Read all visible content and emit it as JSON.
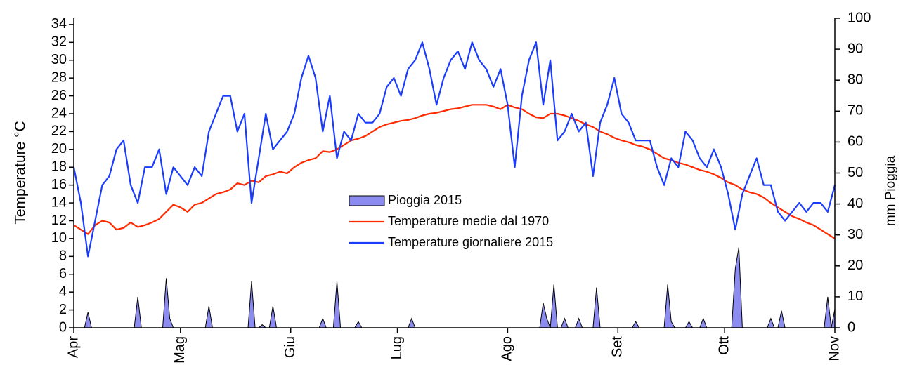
{
  "chart_data": {
    "type": "line",
    "y_label": "Temperature °C",
    "y2_label": "mm Pioggia",
    "legend": "center",
    "xlim": [
      0,
      214
    ],
    "xticks": [
      {
        "value": 0,
        "label": "Apr"
      },
      {
        "value": 30,
        "label": "Mag"
      },
      {
        "value": 61,
        "label": "Giu"
      },
      {
        "value": 91,
        "label": "Lug"
      },
      {
        "value": 122,
        "label": "Ago"
      },
      {
        "value": 153,
        "label": "Set"
      },
      {
        "value": 183,
        "label": "Ott"
      },
      {
        "value": 214,
        "label": "Nov"
      }
    ],
    "ylim": [
      0,
      34.7
    ],
    "yticks": [
      0,
      2,
      4,
      6,
      8,
      10,
      12,
      14,
      16,
      18,
      20,
      22,
      24,
      26,
      28,
      30,
      32,
      34
    ],
    "y2lim": [
      0,
      100
    ],
    "y2ticks": [
      0,
      10,
      20,
      30,
      40,
      50,
      60,
      70,
      80,
      90,
      100
    ],
    "x": [
      0,
      2,
      4,
      6,
      8,
      10,
      12,
      14,
      16,
      18,
      20,
      22,
      24,
      26,
      28,
      30,
      32,
      34,
      36,
      38,
      40,
      42,
      44,
      46,
      48,
      50,
      52,
      54,
      56,
      58,
      60,
      62,
      64,
      66,
      68,
      70,
      72,
      74,
      76,
      78,
      80,
      82,
      84,
      86,
      88,
      90,
      92,
      94,
      96,
      98,
      100,
      102,
      104,
      106,
      108,
      110,
      112,
      114,
      116,
      118,
      120,
      122,
      124,
      126,
      128,
      130,
      132,
      134,
      136,
      138,
      140,
      142,
      144,
      146,
      148,
      150,
      152,
      154,
      156,
      158,
      160,
      162,
      164,
      166,
      168,
      170,
      172,
      174,
      176,
      178,
      180,
      182,
      184,
      186,
      188,
      190,
      192,
      194,
      196,
      198,
      200,
      202,
      204,
      206,
      208,
      210,
      212,
      214
    ],
    "series": [
      {
        "name": "Pioggia 2015",
        "color": "#8c8cf0",
        "axis": "y2",
        "kind": "area",
        "x": [
          0,
          3,
          4,
          5,
          17,
          18,
          19,
          25,
          26,
          27,
          28,
          37,
          38,
          39,
          49,
          50,
          51,
          52,
          53,
          54,
          55,
          56,
          57,
          69,
          70,
          71,
          73,
          74,
          75,
          79,
          80,
          81,
          94,
          95,
          96,
          131,
          132,
          133,
          134,
          135,
          136,
          137,
          138,
          139,
          141,
          142,
          143,
          146,
          147,
          148,
          157,
          158,
          159,
          166,
          167,
          168,
          169,
          172,
          173,
          174,
          176,
          177,
          178,
          185,
          186,
          187,
          188,
          195,
          196,
          197,
          198,
          199,
          200,
          211,
          212,
          213,
          214
        ],
        "values": [
          0,
          0,
          5,
          0,
          0,
          10,
          0,
          0,
          16,
          3,
          0,
          0,
          7,
          0,
          0,
          15,
          0,
          0,
          1,
          0,
          0,
          7,
          0,
          0,
          3,
          0,
          0,
          15,
          0,
          0,
          2,
          0,
          0,
          3,
          0,
          0,
          8,
          3,
          0,
          14,
          0,
          0,
          3,
          0,
          0,
          3,
          0,
          0,
          13,
          0,
          0,
          2,
          0,
          0,
          14,
          2,
          0,
          0,
          2,
          0,
          0,
          3,
          0,
          0,
          19,
          26,
          0,
          0,
          3,
          0,
          0,
          5.5,
          0,
          0,
          10,
          0,
          6
        ]
      },
      {
        "name": "Temperature medie dal 1970",
        "color": "#ff2a00",
        "values": [
          11.5,
          11,
          10.5,
          11.5,
          12,
          11.8,
          11,
          11.2,
          11.8,
          11.3,
          11.5,
          11.8,
          12.2,
          13,
          13.8,
          13.5,
          13,
          13.8,
          14,
          14.5,
          15,
          15.2,
          15.5,
          16.2,
          16,
          16.5,
          16.3,
          17,
          17.2,
          17.5,
          17.3,
          18,
          18.5,
          18.8,
          19,
          19.8,
          19.7,
          20,
          20.5,
          21,
          21.2,
          21.5,
          22,
          22.5,
          22.8,
          23,
          23.2,
          23.3,
          23.5,
          23.8,
          24,
          24.1,
          24.3,
          24.5,
          24.6,
          24.8,
          25,
          25,
          25,
          24.8,
          24.5,
          25,
          24.7,
          24.5,
          24,
          23.6,
          23.5,
          24,
          24,
          23.8,
          23.5,
          23.2,
          22.8,
          22.5,
          22,
          21.7,
          21.3,
          21,
          20.8,
          20.5,
          20.3,
          20,
          19.5,
          19,
          18.8,
          18.5,
          18.3,
          18,
          17.7,
          17.5,
          17.2,
          16.8,
          16.3,
          16,
          15.5,
          15.2,
          15,
          14.6,
          14,
          13.5,
          13,
          12.5,
          12.2,
          11.8,
          11.5,
          11,
          10.5,
          10
        ]
      },
      {
        "name": "Temperature giornaliere 2015",
        "color": "#1a3cff",
        "values": [
          18,
          14,
          8,
          12,
          16,
          17,
          20,
          21,
          16,
          14,
          18,
          18,
          20,
          15,
          18,
          17,
          16,
          18,
          17,
          22,
          24,
          26,
          26,
          22,
          24,
          14,
          19,
          24,
          20,
          21,
          22,
          24,
          28,
          30.5,
          28,
          22,
          26,
          19,
          22,
          21,
          24,
          23,
          23,
          24,
          27,
          28,
          26,
          29,
          30,
          32,
          29,
          25,
          28,
          30,
          31,
          29,
          32,
          30,
          29,
          27,
          29,
          25,
          18,
          26,
          30,
          32,
          25,
          30,
          21,
          22,
          24,
          22,
          23,
          17,
          23,
          25,
          28,
          24,
          23,
          21,
          21,
          21,
          18,
          16,
          19,
          18,
          22,
          21,
          19,
          18,
          20,
          18,
          15,
          11,
          15,
          17,
          19,
          16,
          16,
          13,
          12,
          13,
          14,
          13,
          14,
          14,
          13,
          16
        ]
      }
    ]
  }
}
